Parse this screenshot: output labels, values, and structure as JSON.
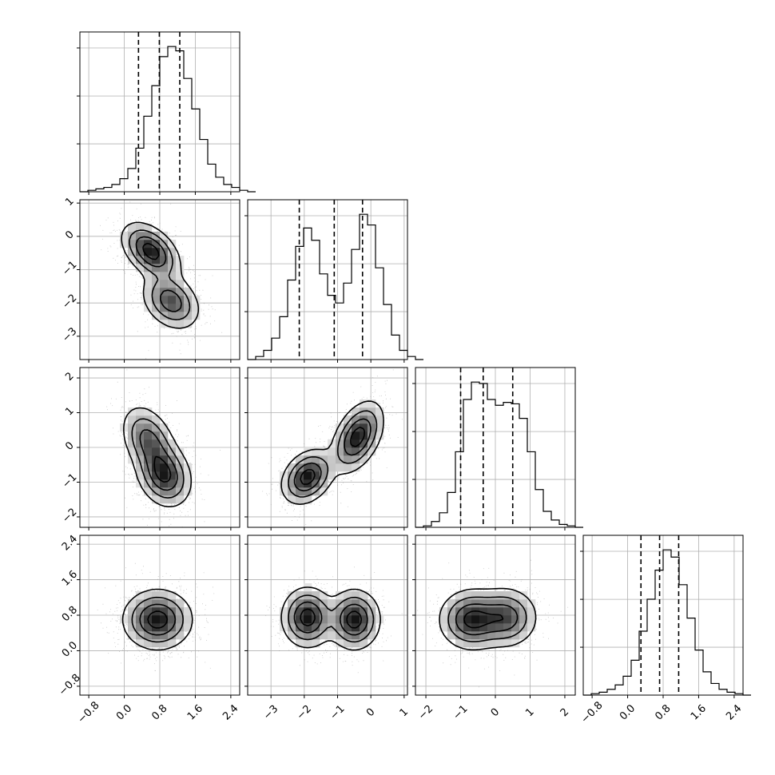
{
  "chart_data": {
    "type": "corner",
    "title": "",
    "parameters": [
      {
        "index": 0,
        "range": [
          -1.0,
          2.6
        ],
        "ticks": [
          "−0.8",
          "0.0",
          "0.8",
          "1.6",
          "2.4"
        ],
        "tick_values": [
          -0.8,
          0.0,
          0.8,
          1.6,
          2.4
        ],
        "quantiles": [
          0.32,
          0.79,
          1.25
        ]
      },
      {
        "index": 1,
        "range": [
          -3.7,
          1.1
        ],
        "ticks": [
          "−3",
          "−2",
          "−1",
          "0",
          "1"
        ],
        "tick_values": [
          -3,
          -2,
          -1,
          0,
          1
        ],
        "quantiles": [
          -2.15,
          -1.1,
          -0.25
        ]
      },
      {
        "index": 2,
        "range": [
          -2.3,
          2.3
        ],
        "ticks": [
          "−2",
          "−1",
          "0",
          "1",
          "2"
        ],
        "tick_values": [
          -2,
          -1,
          0,
          1,
          2
        ],
        "quantiles": [
          -1.0,
          -0.35,
          0.5
        ]
      },
      {
        "index": 3,
        "range": [
          -1.0,
          2.6
        ],
        "ticks": [
          "−0.8",
          "0.0",
          "0.8",
          "1.6",
          "2.4"
        ],
        "tick_values": [
          -0.8,
          0.0,
          0.8,
          1.6,
          2.4
        ],
        "quantiles": [
          0.3,
          0.72,
          1.15
        ]
      }
    ],
    "histograms": [
      {
        "param": 0,
        "bins_start": -1.0,
        "bin_width": 0.18,
        "counts": [
          0,
          1,
          2,
          3,
          5,
          9,
          16,
          30,
          52,
          73,
          93,
          100,
          97,
          78,
          57,
          36,
          19,
          10,
          5,
          3,
          1,
          0
        ]
      },
      {
        "param": 1,
        "bins_start": -3.7,
        "bin_width": 0.24,
        "counts": [
          0,
          2,
          6,
          14,
          28,
          52,
          74,
          86,
          78,
          56,
          42,
          37,
          50,
          72,
          95,
          88,
          60,
          36,
          16,
          6,
          2,
          0
        ]
      },
      {
        "param": 2,
        "bins_start": -2.3,
        "bin_width": 0.23,
        "counts": [
          0,
          1,
          4,
          10,
          24,
          52,
          88,
          100,
          99,
          88,
          84,
          86,
          85,
          75,
          52,
          26,
          11,
          5,
          2,
          1,
          0
        ]
      },
      {
        "param": 3,
        "bins_start": -1.0,
        "bin_width": 0.18,
        "counts": [
          0,
          1,
          2,
          4,
          7,
          13,
          24,
          44,
          66,
          86,
          100,
          95,
          76,
          53,
          31,
          16,
          8,
          4,
          2,
          1,
          0
        ]
      }
    ],
    "pairs": [
      {
        "x": 0,
        "y": 1,
        "modes": [
          {
            "mx": 0.6,
            "my": -0.45,
            "sx": 0.32,
            "sy": 0.42,
            "rho": -0.45,
            "w": 0.55
          },
          {
            "mx": 1.05,
            "my": -1.95,
            "sx": 0.32,
            "sy": 0.42,
            "rho": -0.3,
            "w": 0.45
          }
        ]
      },
      {
        "x": 0,
        "y": 2,
        "modes": [
          {
            "mx": 0.55,
            "my": 0.2,
            "sx": 0.3,
            "sy": 0.5,
            "rho": -0.35,
            "w": 0.45
          },
          {
            "mx": 0.9,
            "my": -0.8,
            "sx": 0.3,
            "sy": 0.45,
            "rho": -0.2,
            "w": 0.55
          }
        ]
      },
      {
        "x": 1,
        "y": 2,
        "modes": [
          {
            "mx": -1.9,
            "my": -0.85,
            "sx": 0.38,
            "sy": 0.38,
            "rho": 0.3,
            "w": 0.45
          },
          {
            "mx": -0.4,
            "my": 0.3,
            "sx": 0.38,
            "sy": 0.5,
            "rho": 0.45,
            "w": 0.55
          }
        ]
      },
      {
        "x": 0,
        "y": 3,
        "modes": [
          {
            "mx": 0.75,
            "my": 0.7,
            "sx": 0.38,
            "sy": 0.33,
            "rho": 0.0,
            "w": 1.0
          }
        ]
      },
      {
        "x": 1,
        "y": 3,
        "modes": [
          {
            "mx": -1.9,
            "my": 0.75,
            "sx": 0.38,
            "sy": 0.33,
            "rho": 0.0,
            "w": 0.5
          },
          {
            "mx": -0.5,
            "my": 0.7,
            "sx": 0.38,
            "sy": 0.33,
            "rho": 0.0,
            "w": 0.5
          }
        ]
      },
      {
        "x": 2,
        "y": 3,
        "modes": [
          {
            "mx": -0.7,
            "my": 0.7,
            "sx": 0.45,
            "sy": 0.33,
            "rho": 0.0,
            "w": 0.55
          },
          {
            "mx": 0.3,
            "my": 0.75,
            "sx": 0.45,
            "sy": 0.33,
            "rho": 0.0,
            "w": 0.45
          }
        ]
      }
    ],
    "grid": true,
    "legend": ""
  }
}
